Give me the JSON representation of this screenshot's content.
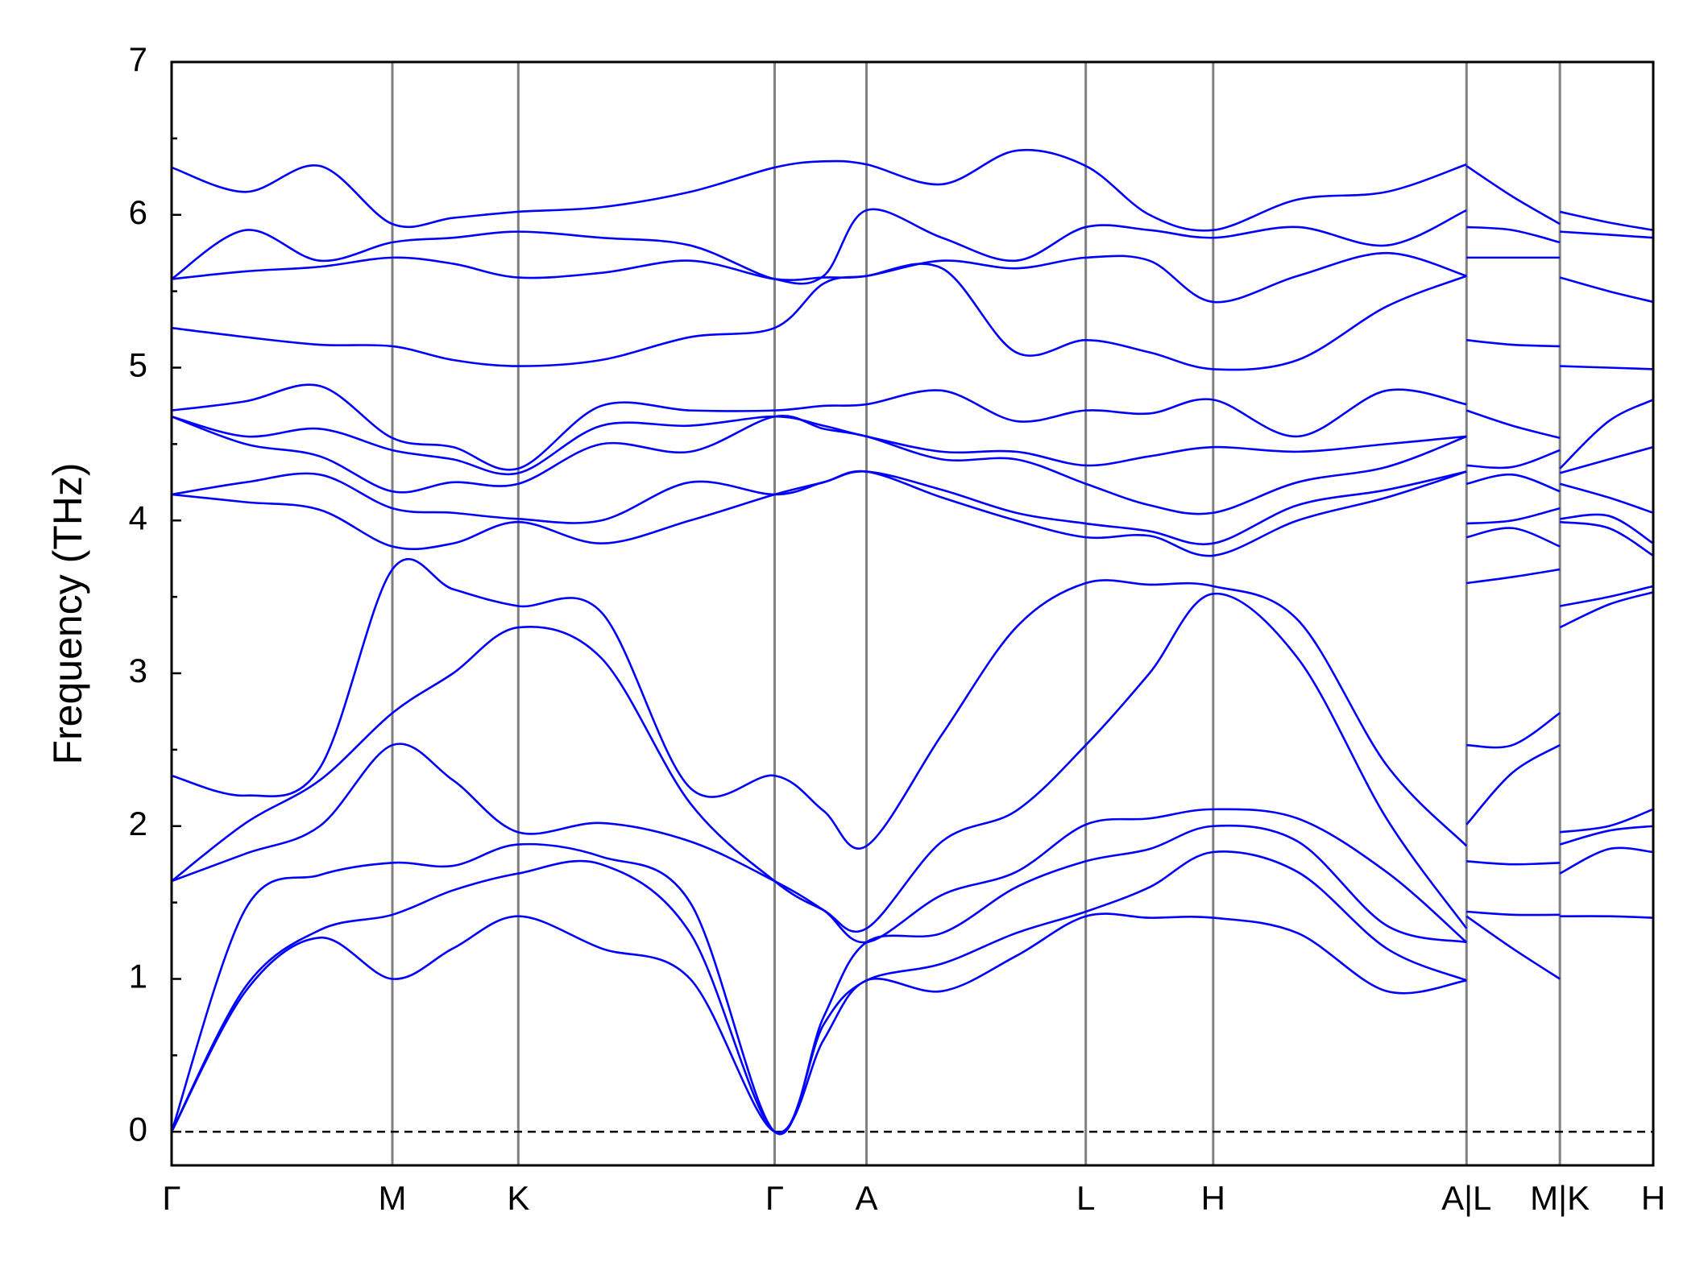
{
  "chart_data": {
    "type": "line",
    "ylabel": "Frequency (THz)",
    "color": "#0000ff",
    "x": [
      0,
      0.05,
      0.1,
      0.149,
      0.19,
      0.234,
      0.29,
      0.35,
      0.407,
      0.44,
      0.469,
      0.52,
      0.57,
      0.617,
      0.66,
      0.703,
      0.76,
      0.82,
      0.874,
      0.874,
      0.874,
      0.905,
      0.937,
      0.937,
      0.937,
      0.97,
      1.0
    ],
    "series": [
      {
        "values": [
          0,
          0.92,
          1.27,
          1.0,
          1.2,
          1.41,
          1.2,
          1.0,
          0,
          0.6,
          0.99,
          0.92,
          1.15,
          1.41,
          1.4,
          1.4,
          1.3,
          0.92,
          0.99,
          null,
          1.41,
          1.2,
          1.0,
          null,
          1.41,
          1.41,
          1.4
        ]
      },
      {
        "values": [
          0,
          0.95,
          1.32,
          1.42,
          1.58,
          1.69,
          1.75,
          1.3,
          0,
          0.7,
          0.99,
          1.1,
          1.3,
          1.44,
          1.6,
          1.83,
          1.7,
          1.2,
          0.99,
          null,
          1.44,
          1.42,
          1.42,
          null,
          1.69,
          1.85,
          1.83
        ]
      },
      {
        "values": [
          0,
          1.46,
          1.68,
          1.76,
          1.74,
          1.88,
          1.8,
          1.5,
          0,
          0.75,
          1.24,
          1.3,
          1.6,
          1.77,
          1.85,
          2.0,
          1.9,
          1.35,
          1.24,
          null,
          1.77,
          1.75,
          1.76,
          null,
          1.88,
          1.97,
          2.0
        ]
      },
      {
        "values": [
          1.64,
          1.82,
          2.0,
          2.53,
          2.3,
          1.96,
          2.02,
          1.9,
          1.64,
          1.45,
          1.24,
          1.55,
          1.7,
          2.01,
          2.05,
          2.11,
          2.05,
          1.7,
          1.24,
          null,
          2.01,
          2.35,
          2.53,
          null,
          1.96,
          2.0,
          2.11
        ]
      },
      {
        "values": [
          1.64,
          2.02,
          2.3,
          2.74,
          3.0,
          3.3,
          3.1,
          2.15,
          1.64,
          1.45,
          1.33,
          1.9,
          2.1,
          2.53,
          3.0,
          3.52,
          3.1,
          2.05,
          1.33,
          null,
          2.53,
          2.53,
          2.74,
          null,
          3.3,
          3.45,
          3.53
        ]
      },
      {
        "values": [
          2.33,
          2.2,
          2.38,
          3.68,
          3.55,
          3.44,
          3.4,
          2.25,
          2.33,
          2.1,
          1.87,
          2.6,
          3.3,
          3.59,
          3.58,
          3.57,
          3.35,
          2.4,
          1.87,
          null,
          3.59,
          3.63,
          3.68,
          null,
          3.44,
          3.5,
          3.57
        ]
      },
      {
        "values": [
          4.17,
          4.12,
          4.07,
          3.83,
          3.85,
          3.99,
          3.85,
          4.0,
          4.17,
          4.25,
          4.32,
          4.15,
          4.0,
          3.89,
          3.9,
          3.77,
          4.0,
          4.15,
          4.32,
          null,
          3.89,
          3.95,
          3.83,
          null,
          3.99,
          3.95,
          3.77
        ]
      },
      {
        "values": [
          4.17,
          4.25,
          4.3,
          4.08,
          4.05,
          4.01,
          4.0,
          4.25,
          4.17,
          4.25,
          4.32,
          4.2,
          4.05,
          3.98,
          3.93,
          3.85,
          4.1,
          4.2,
          4.32,
          null,
          3.98,
          4.0,
          4.08,
          null,
          4.01,
          4.03,
          3.85
        ]
      },
      {
        "values": [
          4.68,
          4.5,
          4.42,
          4.19,
          4.25,
          4.24,
          4.5,
          4.45,
          4.68,
          4.6,
          4.55,
          4.4,
          4.4,
          4.24,
          4.1,
          4.05,
          4.25,
          4.35,
          4.55,
          null,
          4.24,
          4.3,
          4.19,
          null,
          4.24,
          4.15,
          4.05
        ]
      },
      {
        "values": [
          4.68,
          4.55,
          4.6,
          4.46,
          4.4,
          4.31,
          4.62,
          4.62,
          4.68,
          4.62,
          4.55,
          4.45,
          4.45,
          4.36,
          4.42,
          4.48,
          4.45,
          4.5,
          4.55,
          null,
          4.36,
          4.35,
          4.46,
          null,
          4.31,
          4.4,
          4.48
        ]
      },
      {
        "values": [
          4.72,
          4.78,
          4.88,
          4.54,
          4.48,
          4.34,
          4.75,
          4.72,
          4.72,
          4.75,
          4.76,
          4.85,
          4.65,
          4.72,
          4.7,
          4.79,
          4.55,
          4.85,
          4.76,
          null,
          4.72,
          4.62,
          4.54,
          null,
          4.34,
          4.65,
          4.79
        ]
      },
      {
        "values": [
          5.26,
          5.2,
          5.15,
          5.14,
          5.05,
          5.01,
          5.05,
          5.2,
          5.26,
          5.55,
          5.6,
          5.65,
          5.1,
          5.18,
          5.1,
          4.99,
          5.05,
          5.4,
          5.6,
          null,
          5.18,
          5.15,
          5.14,
          null,
          5.01,
          5.0,
          4.99
        ]
      },
      {
        "values": [
          5.58,
          5.63,
          5.66,
          5.72,
          5.68,
          5.59,
          5.62,
          5.7,
          5.58,
          5.59,
          5.6,
          5.7,
          5.65,
          5.72,
          5.7,
          5.43,
          5.6,
          5.75,
          5.6,
          null,
          5.72,
          5.72,
          5.72,
          null,
          5.59,
          5.5,
          5.43
        ]
      },
      {
        "values": [
          5.58,
          5.9,
          5.7,
          5.82,
          5.85,
          5.89,
          5.85,
          5.8,
          5.58,
          5.6,
          6.03,
          5.85,
          5.7,
          5.92,
          5.9,
          5.85,
          5.92,
          5.8,
          6.03,
          null,
          5.92,
          5.9,
          5.82,
          null,
          5.89,
          5.87,
          5.85
        ]
      },
      {
        "values": [
          6.31,
          6.15,
          6.32,
          5.94,
          5.98,
          6.02,
          6.05,
          6.15,
          6.31,
          6.35,
          6.33,
          6.2,
          6.42,
          6.32,
          6.0,
          5.9,
          6.1,
          6.15,
          6.33,
          null,
          6.32,
          6.12,
          5.94,
          null,
          6.02,
          5.95,
          5.9
        ]
      }
    ],
    "xlim": [
      0,
      1
    ],
    "ylim": [
      -0.22,
      7
    ],
    "yticks": [
      0,
      1,
      2,
      3,
      4,
      5,
      6,
      7
    ],
    "yminorticks": [
      0.5,
      1.5,
      2.5,
      3.5,
      4.5,
      5.5,
      6.5
    ],
    "xticks": [
      {
        "value": 0,
        "label": "Γ"
      },
      {
        "value": 0.149,
        "label": "M"
      },
      {
        "value": 0.234,
        "label": "K"
      },
      {
        "value": 0.407,
        "label": "Γ"
      },
      {
        "value": 0.469,
        "label": "A"
      },
      {
        "value": 0.617,
        "label": "L"
      },
      {
        "value": 0.703,
        "label": "H"
      },
      {
        "value": 0.874,
        "label": "A|L"
      },
      {
        "value": 0.937,
        "label": "M|K"
      },
      {
        "value": 1,
        "label": "H"
      }
    ],
    "vline_color": "#808080",
    "zero_line": 0
  }
}
